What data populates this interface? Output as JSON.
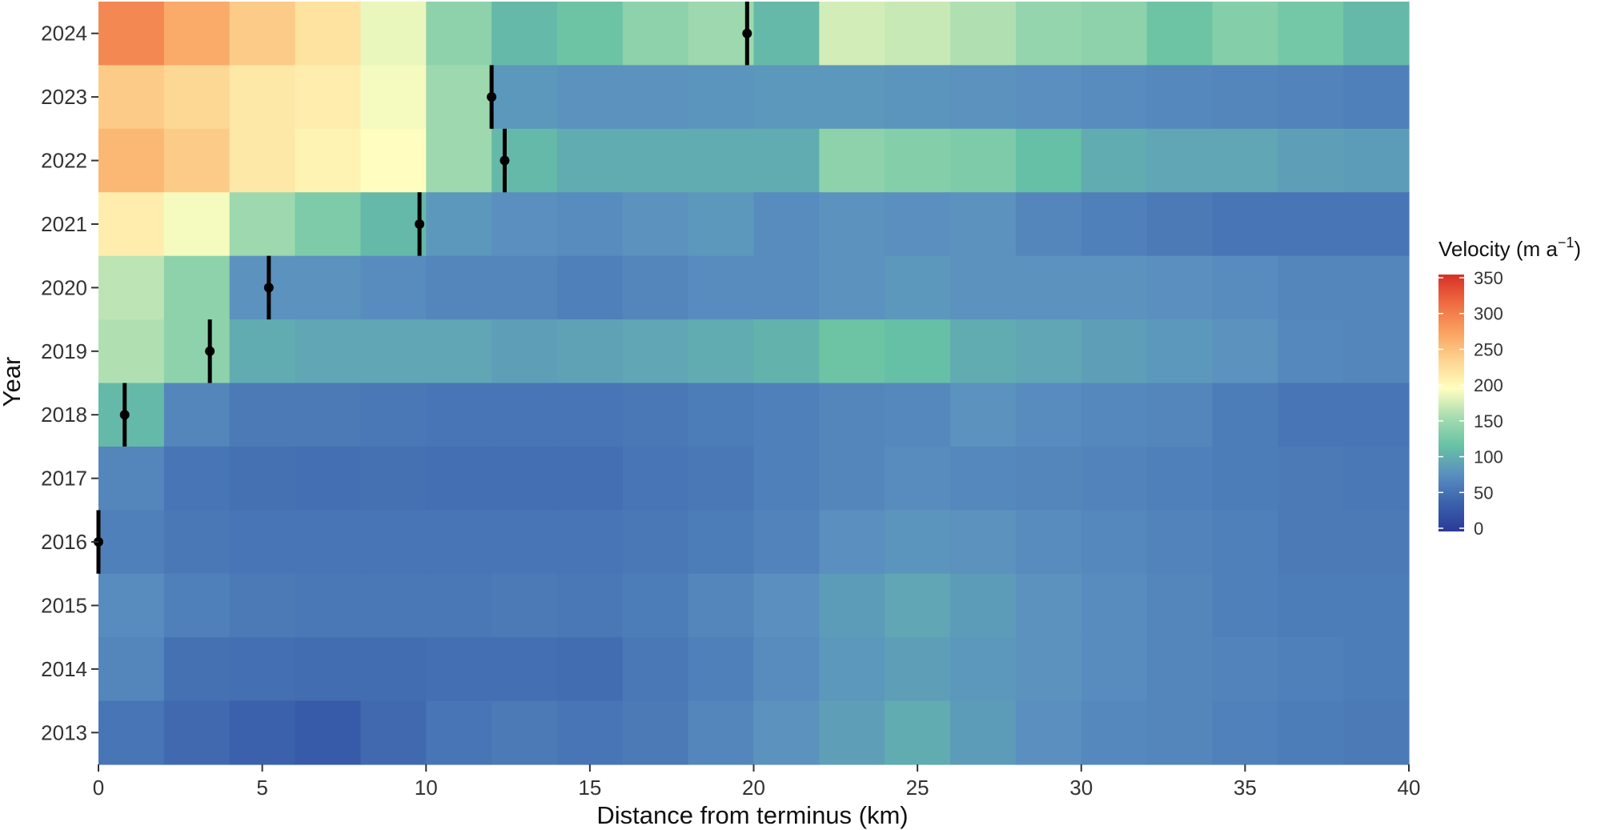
{
  "chart_data": {
    "type": "heatmap",
    "xlabel": "Distance from terminus (km)",
    "ylabel": "Year",
    "xlim": [
      0,
      40
    ],
    "x_ticks": [
      0,
      5,
      10,
      15,
      20,
      25,
      30,
      35,
      40
    ],
    "years": [
      2024,
      2023,
      2022,
      2021,
      2020,
      2019,
      2018,
      2017,
      2016,
      2015,
      2014,
      2013
    ],
    "x_breaks": [
      0,
      2,
      4,
      6,
      8,
      10,
      12,
      14,
      16,
      18,
      20,
      22,
      24,
      26,
      28,
      30,
      32,
      34,
      36,
      38,
      40
    ],
    "velocity": [
      [
        290,
        265,
        240,
        220,
        185,
        140,
        110,
        120,
        140,
        150,
        110,
        175,
        170,
        160,
        145,
        140,
        120,
        135,
        125,
        110
      ],
      [
        240,
        230,
        215,
        210,
        190,
        150,
        85,
        80,
        80,
        82,
        85,
        85,
        82,
        80,
        78,
        75,
        72,
        70,
        68,
        65
      ],
      [
        255,
        240,
        215,
        205,
        195,
        150,
        110,
        100,
        100,
        100,
        100,
        140,
        135,
        130,
        115,
        100,
        95,
        95,
        90,
        88
      ],
      [
        210,
        190,
        150,
        130,
        110,
        85,
        78,
        75,
        80,
        85,
        75,
        80,
        78,
        80,
        70,
        65,
        60,
        55,
        55,
        55
      ],
      [
        165,
        140,
        80,
        80,
        75,
        70,
        70,
        65,
        70,
        75,
        75,
        80,
        85,
        80,
        80,
        80,
        78,
        75,
        70,
        70
      ],
      [
        160,
        140,
        100,
        95,
        95,
        95,
        90,
        92,
        95,
        100,
        105,
        120,
        115,
        100,
        95,
        90,
        85,
        80,
        72,
        70
      ],
      [
        110,
        70,
        60,
        60,
        58,
        55,
        55,
        55,
        58,
        62,
        65,
        70,
        72,
        80,
        75,
        72,
        70,
        62,
        55,
        55
      ],
      [
        70,
        55,
        52,
        50,
        52,
        50,
        50,
        50,
        55,
        58,
        65,
        70,
        75,
        72,
        70,
        68,
        65,
        62,
        60,
        58
      ],
      [
        65,
        58,
        55,
        55,
        55,
        55,
        55,
        55,
        58,
        62,
        68,
        78,
        82,
        80,
        75,
        72,
        68,
        65,
        60,
        60
      ],
      [
        75,
        65,
        60,
        58,
        58,
        58,
        60,
        58,
        62,
        70,
        78,
        88,
        95,
        88,
        80,
        75,
        70,
        65,
        62,
        62
      ],
      [
        70,
        52,
        50,
        48,
        48,
        50,
        50,
        48,
        58,
        65,
        75,
        85,
        90,
        85,
        80,
        75,
        70,
        68,
        65,
        62
      ],
      [
        55,
        45,
        38,
        32,
        45,
        55,
        60,
        55,
        60,
        70,
        80,
        90,
        100,
        88,
        78,
        72,
        70,
        66,
        62,
        60
      ]
    ],
    "terminus_km": [
      19.8,
      12.0,
      12.4,
      9.8,
      5.2,
      3.4,
      0.8,
      null,
      0.0,
      null,
      null,
      null
    ],
    "colorbar": {
      "title": "Velocity (m a",
      "title_superscript": "−1",
      "title_close": ")",
      "min": 0,
      "max": 350,
      "ticks": [
        350,
        300,
        250,
        200,
        150,
        100,
        50,
        0
      ]
    },
    "colormap": [
      "#2b3a96",
      "#3b62ad",
      "#5a8fc0",
      "#67c2a4",
      "#a6dcb0",
      "#fffec0",
      "#fdd490",
      "#f9a160",
      "#ef6b42",
      "#d73027"
    ],
    "legend_position": "right"
  }
}
